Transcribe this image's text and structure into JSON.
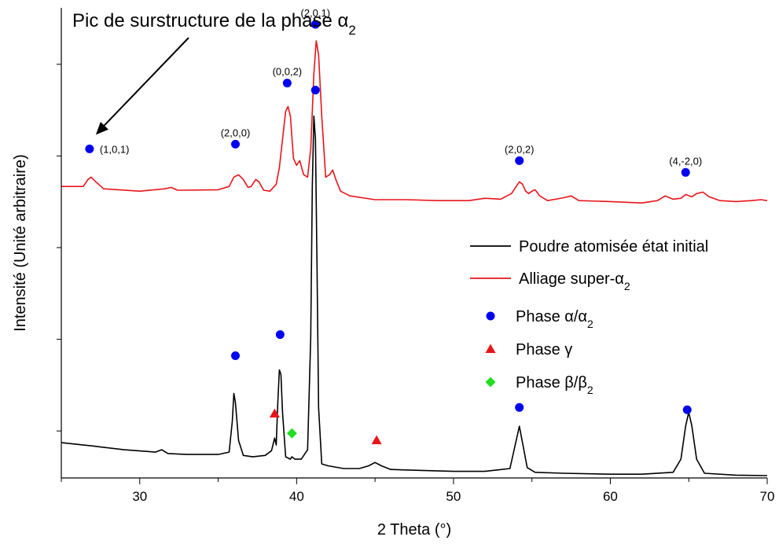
{
  "chart_data": {
    "type": "line",
    "xlabel": "2 Theta (°)",
    "ylabel": "Intensité (Unité arbitraire)",
    "xlim": [
      25,
      70
    ],
    "ylim": [
      0,
      100
    ],
    "x_ticks": [
      30,
      40,
      50,
      60,
      70
    ],
    "y_ticks": [],
    "grid": false,
    "legend_position": "right-center",
    "annotation": {
      "text": "Pic de surstructure de la phase α",
      "subscript": "2",
      "points_to": [
        26.9,
        72
      ]
    },
    "series": [
      {
        "name": "Poudre atomisée état initial",
        "color": "#000000",
        "x": [
          25.0,
          27.0,
          29.0,
          31.0,
          31.4,
          31.8,
          33.0,
          35.0,
          35.7,
          35.9,
          36.0,
          36.1,
          36.3,
          36.6,
          37.2,
          38.0,
          38.4,
          38.6,
          38.7,
          38.8,
          38.9,
          39.0,
          39.1,
          39.3,
          39.6,
          39.7,
          39.9,
          40.3,
          40.7,
          40.9,
          41.0,
          41.1,
          41.2,
          41.3,
          41.4,
          41.6,
          42.0,
          43.0,
          44.0,
          44.6,
          45.0,
          45.4,
          46.0,
          48.0,
          50.0,
          52.0,
          53.6,
          54.0,
          54.2,
          54.4,
          54.7,
          55.2,
          57.0,
          60.0,
          62.0,
          64.0,
          64.5,
          64.8,
          65.0,
          65.2,
          65.5,
          66.0,
          68.0,
          70.0
        ],
        "y": [
          7.5,
          6.8,
          6.0,
          5.5,
          6.0,
          5.2,
          5.0,
          5.0,
          5.5,
          12.0,
          18.0,
          16.0,
          8.0,
          4.8,
          4.5,
          4.8,
          5.8,
          8.5,
          7.0,
          16.0,
          23.0,
          22.0,
          14.0,
          4.5,
          4.0,
          4.5,
          4.0,
          4.0,
          6.0,
          30.0,
          62.0,
          77.0,
          72.0,
          45.0,
          15.0,
          3.0,
          2.6,
          2.0,
          2.0,
          2.6,
          3.3,
          2.6,
          1.8,
          1.6,
          1.4,
          1.4,
          2.0,
          8.0,
          11.0,
          7.5,
          2.2,
          1.2,
          1.0,
          0.8,
          0.8,
          1.2,
          4.0,
          11.0,
          14.0,
          11.0,
          4.0,
          1.0,
          0.6,
          0.5
        ]
      },
      {
        "name": "Alliage super-α",
        "name_subscript": "2",
        "color": "#e8141a",
        "x": [
          25.0,
          26.4,
          26.7,
          26.9,
          27.2,
          27.7,
          30.0,
          31.6,
          32.0,
          32.4,
          35.0,
          35.7,
          36.0,
          36.3,
          36.6,
          36.9,
          37.1,
          37.4,
          37.6,
          37.9,
          38.3,
          38.7,
          38.9,
          39.1,
          39.3,
          39.45,
          39.6,
          39.8,
          40.0,
          40.2,
          40.45,
          40.7,
          40.9,
          41.1,
          41.25,
          41.4,
          41.6,
          41.85,
          42.1,
          42.3,
          42.5,
          42.8,
          43.4,
          45.0,
          47.0,
          49.0,
          51.0,
          52.0,
          53.0,
          53.7,
          54.0,
          54.2,
          54.4,
          54.6,
          54.8,
          55.0,
          55.2,
          55.5,
          56.0,
          57.0,
          57.5,
          58.0,
          60.0,
          62.0,
          63.0,
          63.5,
          64.0,
          64.5,
          64.8,
          65.2,
          65.5,
          65.9,
          66.3,
          67.0,
          68.0,
          69.0,
          69.6,
          70.0
        ],
        "y": [
          62.0,
          62.0,
          63.5,
          64.0,
          63.0,
          61.5,
          61.0,
          61.5,
          61.8,
          61.2,
          61.3,
          62.0,
          64.0,
          64.5,
          63.5,
          61.8,
          62.0,
          63.5,
          63.0,
          61.2,
          61.0,
          62.5,
          66.0,
          72.0,
          78.0,
          79.0,
          77.0,
          68.0,
          66.5,
          67.5,
          64.5,
          64.0,
          70.0,
          86.0,
          93.0,
          90.0,
          77.0,
          64.0,
          64.5,
          65.5,
          63.5,
          61.0,
          60.0,
          59.2,
          59.2,
          59.0,
          59.0,
          59.5,
          59.3,
          60.5,
          62.0,
          63.0,
          62.5,
          61.0,
          60.5,
          61.0,
          61.3,
          60.0,
          59.0,
          59.6,
          60.0,
          59.0,
          58.8,
          58.5,
          59.0,
          60.0,
          59.3,
          59.5,
          60.3,
          59.8,
          60.5,
          60.8,
          59.8,
          59.0,
          58.8,
          59.0,
          59.2,
          59.0
        ]
      }
    ],
    "markers": {
      "alpha": {
        "legend": "Phase α/α",
        "legend_subscript": "2",
        "color": "#0000f0",
        "shape": "circle",
        "points": [
          {
            "x": 26.8,
            "y": 70.0,
            "label": "(1,0,1)"
          },
          {
            "x": 36.1,
            "y": 71.0,
            "label": "(2,0,0)"
          },
          {
            "x": 39.4,
            "y": 84.0,
            "label": "(0,0,2)"
          },
          {
            "x": 41.2,
            "y": 96.5,
            "label": "(2,0,1)"
          },
          {
            "x": 54.2,
            "y": 67.5,
            "label": "(2,0,2)"
          },
          {
            "x": 64.8,
            "y": 65.0,
            "label": "(4,-2,0)"
          },
          {
            "x": 41.2,
            "y": 82.5,
            "label": ""
          },
          {
            "x": 36.1,
            "y": 26.0,
            "label": ""
          },
          {
            "x": 38.95,
            "y": 30.5,
            "label": ""
          },
          {
            "x": 54.2,
            "y": 15.0,
            "label": ""
          },
          {
            "x": 64.9,
            "y": 14.5,
            "label": ""
          }
        ]
      },
      "gamma": {
        "legend": "Phase γ",
        "color": "#e8141a",
        "shape": "triangle",
        "points": [
          {
            "x": 38.6,
            "y": 13.7
          },
          {
            "x": 45.1,
            "y": 8.0
          }
        ]
      },
      "beta": {
        "legend": "Phase β/β",
        "legend_subscript": "2",
        "color": "#22dd22",
        "shape": "diamond",
        "points": [
          {
            "x": 39.7,
            "y": 9.5
          }
        ]
      }
    }
  }
}
